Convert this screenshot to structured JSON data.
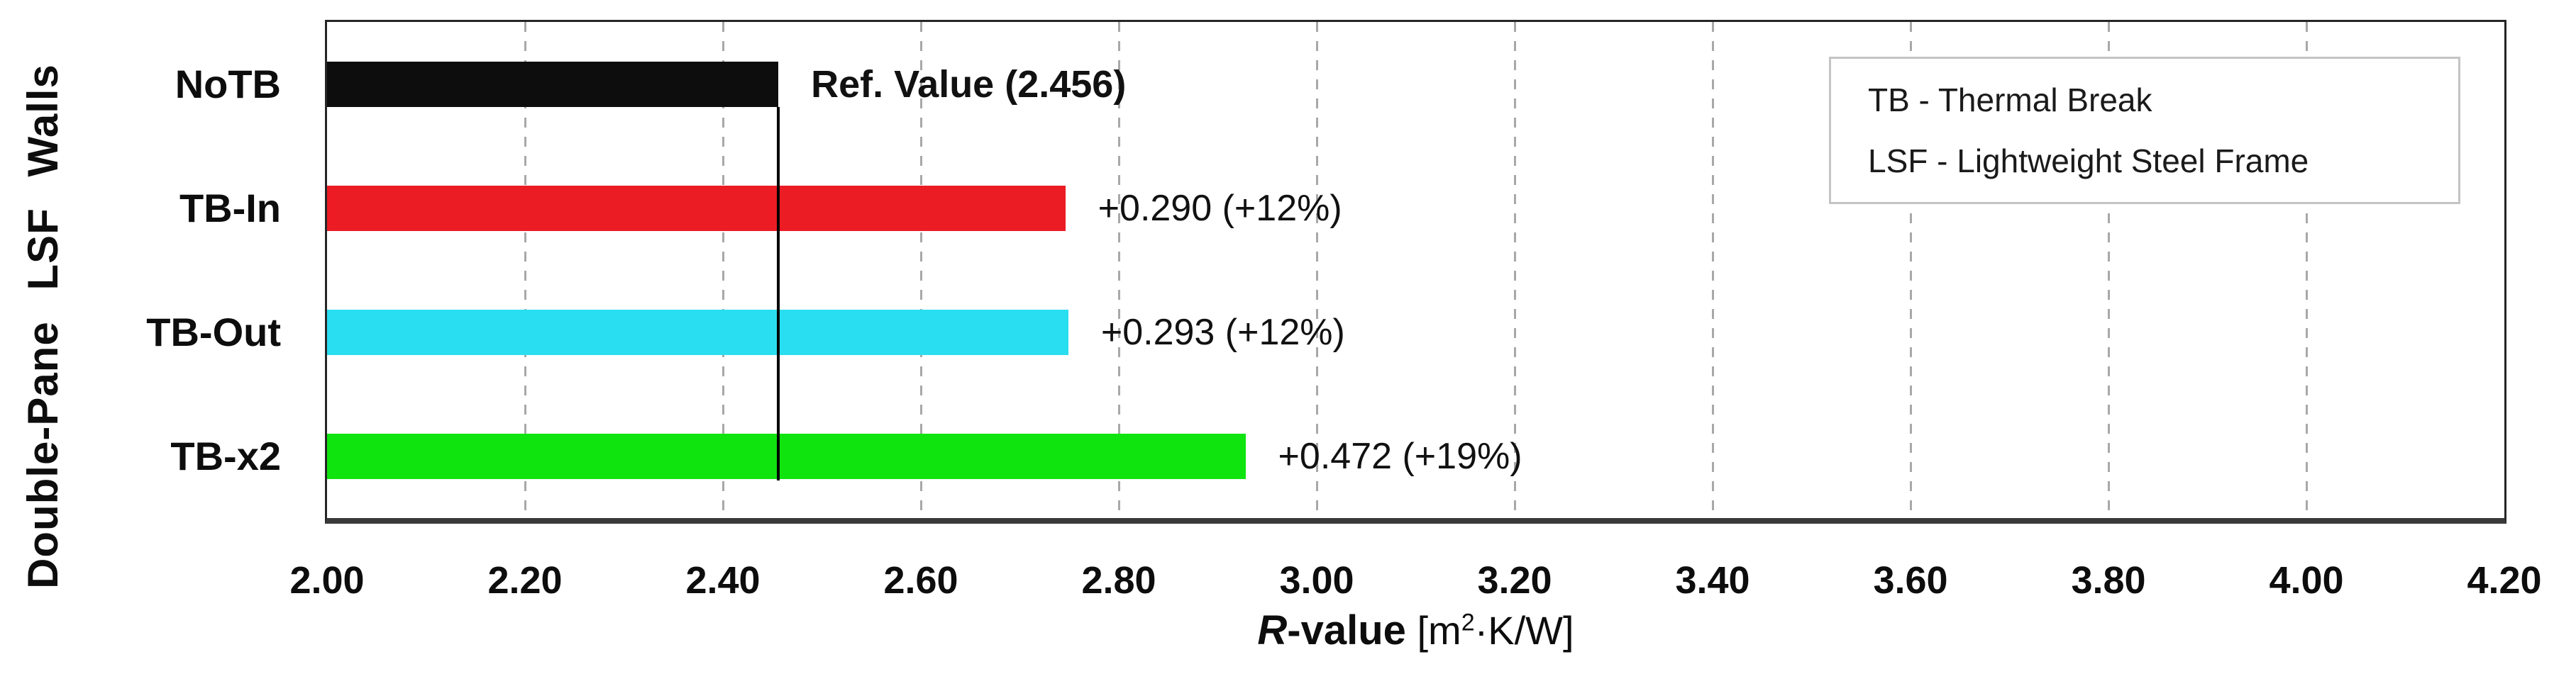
{
  "chart_data": {
    "type": "bar",
    "orientation": "horizontal",
    "y_axis_label": "Double-Pane LSF Walls",
    "x_axis_label": {
      "symbol_italic": "R",
      "suffix_bold": "-value",
      "unit_open": " [m",
      "unit_sup": "2",
      "unit_close": "·K/W]"
    },
    "x_min": 2.0,
    "x_max": 4.2,
    "x_tick_values": [
      2.0,
      2.2,
      2.4,
      2.6,
      2.8,
      3.0,
      3.2,
      3.4,
      3.6,
      3.8,
      4.0,
      4.2
    ],
    "x_tick_labels": [
      "2.00",
      "2.20",
      "2.40",
      "2.60",
      "2.80",
      "3.00",
      "3.20",
      "3.40",
      "3.60",
      "3.80",
      "4.00",
      "4.20"
    ],
    "categories": [
      "NoTB",
      "TB-In",
      "TB-Out",
      "TB-x2"
    ],
    "values": [
      2.456,
      2.746,
      2.749,
      2.928
    ],
    "deltas": [
      null,
      0.29,
      0.293,
      0.472
    ],
    "delta_percents": [
      null,
      12,
      12,
      19
    ],
    "bar_labels": [
      "Ref. Value (2.456)",
      "+0.290 (+12%)",
      "+0.293 (+12%)",
      "+0.472 (+19%)"
    ],
    "bar_label_bold": [
      true,
      false,
      false,
      false
    ],
    "bar_colors": [
      "#0d0d0d",
      "#ec1c24",
      "#29def0",
      "#0fe40f"
    ],
    "reference_value": 2.456,
    "grid": "vertical-dashed",
    "legend_position": "top-right"
  },
  "legend": {
    "line1": "TB - Thermal Break",
    "line2": "LSF - Lightweight Steel Frame"
  },
  "styles": {
    "grid_color": "#a8a8a8",
    "plot_border_color": "#262626",
    "bottom_axis_color": "#3a3a3a",
    "reference_line_color": "#000000",
    "legend_border_color": "#c4c4c4",
    "text_color": "#111111"
  }
}
